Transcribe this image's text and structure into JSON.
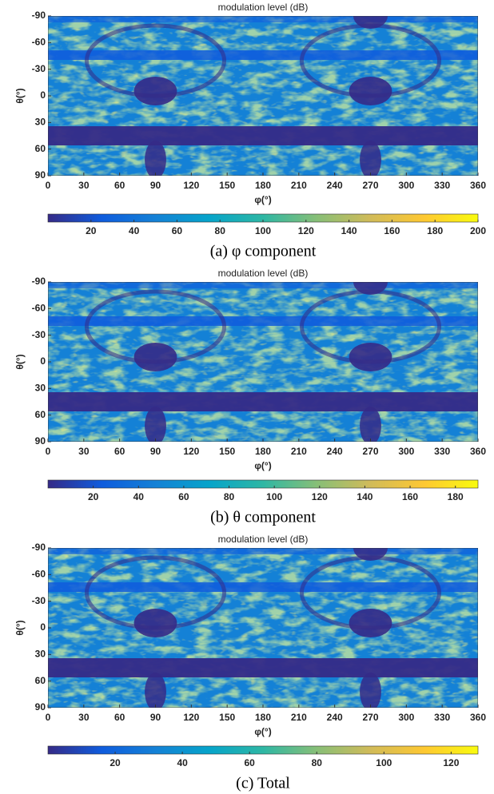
{
  "chart_data": [
    {
      "type": "heatmap",
      "title": "modulation level  (dB)",
      "xlabel": "φ(°)",
      "ylabel": "θ(°)",
      "xlim": [
        0,
        360
      ],
      "xticks": [
        0,
        30,
        60,
        90,
        120,
        150,
        180,
        210,
        240,
        270,
        300,
        330,
        360
      ],
      "ylim": [
        -90,
        90
      ],
      "yticks": [
        -90,
        -60,
        -30,
        0,
        30,
        60,
        90
      ],
      "yreverse": true,
      "clim": [
        0,
        200
      ],
      "cticks": [
        20,
        40,
        60,
        80,
        100,
        120,
        140,
        160,
        180,
        200
      ],
      "colormap": [
        "#352a87",
        "#0f5cdd",
        "#1481d6",
        "#06a4ca",
        "#2eb7a4",
        "#87bf77",
        "#d1bb59",
        "#fec832",
        "#f9fb0e"
      ],
      "caption": "(a) φ component"
    },
    {
      "type": "heatmap",
      "title": "modulation level  (dB)",
      "xlabel": "φ(°)",
      "ylabel": "θ(°)",
      "xlim": [
        0,
        360
      ],
      "xticks": [
        0,
        30,
        60,
        90,
        120,
        150,
        180,
        210,
        240,
        270,
        300,
        330,
        360
      ],
      "ylim": [
        -90,
        90
      ],
      "yticks": [
        -90,
        -60,
        -30,
        0,
        30,
        60,
        90
      ],
      "yreverse": true,
      "clim": [
        0,
        190
      ],
      "cticks": [
        20,
        40,
        60,
        80,
        100,
        120,
        140,
        160,
        180
      ],
      "colormap": [
        "#352a87",
        "#0f5cdd",
        "#1481d6",
        "#06a4ca",
        "#2eb7a4",
        "#87bf77",
        "#d1bb59",
        "#fec832",
        "#f9fb0e"
      ],
      "caption": "(b) θ component"
    },
    {
      "type": "heatmap",
      "title": "modulation level  (dB)",
      "xlabel": "φ(°)",
      "ylabel": "θ(°)",
      "xlim": [
        0,
        360
      ],
      "xticks": [
        0,
        30,
        60,
        90,
        120,
        150,
        180,
        210,
        240,
        270,
        300,
        330,
        360
      ],
      "ylim": [
        -90,
        90
      ],
      "yticks": [
        -90,
        -60,
        -30,
        0,
        30,
        60,
        90
      ],
      "yreverse": true,
      "clim": [
        0,
        128
      ],
      "cticks": [
        20,
        40,
        60,
        80,
        100,
        120
      ],
      "colormap": [
        "#352a87",
        "#0f5cdd",
        "#1481d6",
        "#06a4ca",
        "#2eb7a4",
        "#87bf77",
        "#d1bb59",
        "#fec832",
        "#f9fb0e"
      ],
      "caption": "(c) Total"
    }
  ]
}
